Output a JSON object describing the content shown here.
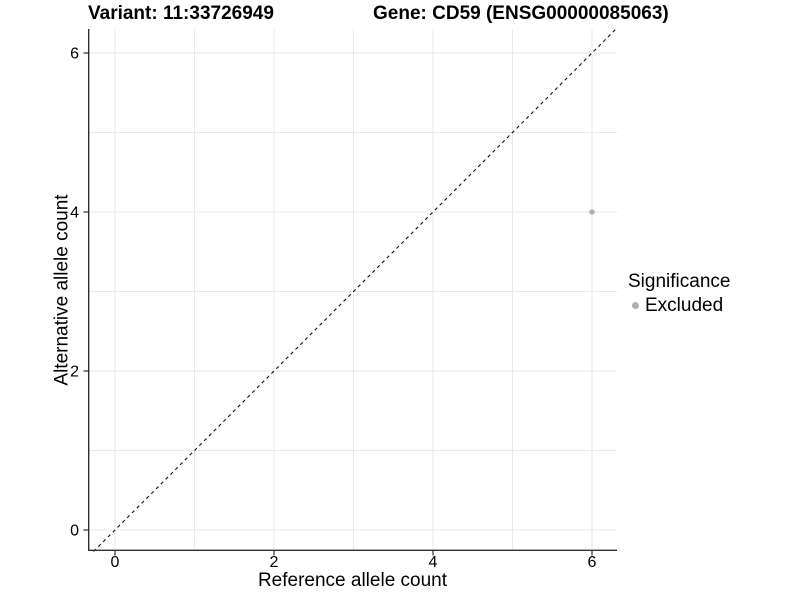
{
  "title": {
    "variant_label": "Variant: 11:33726949",
    "gene_label": "Gene: CD59 (ENSG00000085063)"
  },
  "axes": {
    "x_label": "Reference allele count",
    "y_label": "Alternative allele count"
  },
  "legend": {
    "title": "Significance",
    "entries": [
      {
        "label": "Excluded",
        "color": "#b0b0b0"
      }
    ]
  },
  "colors": {
    "background": "#ffffff",
    "text": "#000000",
    "axis_line": "#2f2f2f",
    "gridline": "#e9e9e9",
    "point": "#b0b0b0",
    "identity_line": "#111111"
  },
  "chart_data": {
    "type": "scatter",
    "title": "Variant: 11:33726949  Gene: CD59 (ENSG00000085063)",
    "xlabel": "Reference allele count",
    "ylabel": "Alternative allele count",
    "xlim": [
      -0.33,
      6.33
    ],
    "ylim": [
      -0.33,
      6.33
    ],
    "x_ticks": [
      0,
      2,
      4,
      6
    ],
    "y_ticks": [
      0,
      2,
      4,
      6
    ],
    "gridlines": [
      0,
      1,
      2,
      3,
      4,
      5,
      6
    ],
    "grid": true,
    "points": [
      {
        "x": 6,
        "y": 4,
        "series": "Excluded",
        "color": "#b0b0b0"
      }
    ],
    "reference_line": {
      "kind": "identity",
      "slope": 1,
      "intercept": 0,
      "style": "dashed",
      "color": "#111111"
    },
    "legend_position": "right",
    "legend_title": "Significance",
    "legend_entries": [
      "Excluded"
    ]
  }
}
